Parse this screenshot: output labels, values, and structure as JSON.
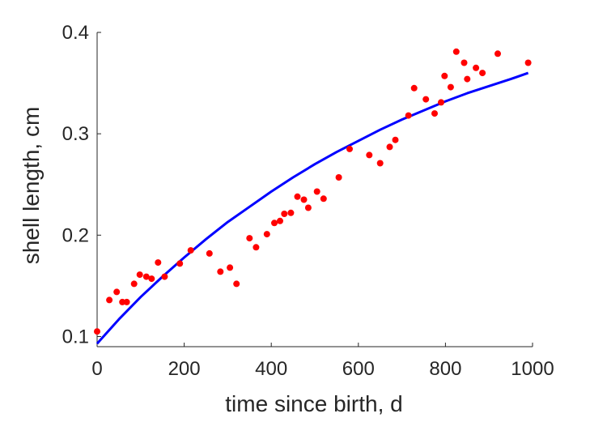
{
  "chart_data": {
    "type": "scatter",
    "title": "",
    "xlabel": "time since birth, d",
    "ylabel": "shell length, cm",
    "xlim": [
      0,
      1000
    ],
    "ylim": [
      0.09,
      0.4
    ],
    "xticks": [
      "0",
      "200",
      "400",
      "600",
      "800",
      "1000"
    ],
    "yticks": [
      "0.1",
      "0.2",
      "0.3",
      "0.4"
    ],
    "xtick_values": [
      0,
      200,
      400,
      600,
      800,
      1000
    ],
    "ytick_values": [
      0.1,
      0.2,
      0.3,
      0.4
    ],
    "grid": false,
    "series": [
      {
        "mode": "markers",
        "color": "#ff0000",
        "x": [
          0,
          28,
          45,
          58,
          68,
          85,
          98,
          113,
          125,
          140,
          155,
          190,
          215,
          258,
          283,
          305,
          320,
          350,
          365,
          390,
          407,
          420,
          430,
          445,
          460,
          475,
          485,
          505,
          520,
          555,
          580,
          625,
          650,
          672,
          685,
          715,
          728,
          755,
          775,
          790,
          798,
          812,
          825,
          843,
          850,
          870,
          885,
          920,
          990
        ],
        "y": [
          0.105,
          0.136,
          0.144,
          0.134,
          0.134,
          0.152,
          0.161,
          0.159,
          0.157,
          0.173,
          0.159,
          0.172,
          0.185,
          0.182,
          0.164,
          0.168,
          0.152,
          0.197,
          0.188,
          0.201,
          0.212,
          0.214,
          0.221,
          0.222,
          0.238,
          0.235,
          0.227,
          0.243,
          0.236,
          0.257,
          0.285,
          0.279,
          0.271,
          0.287,
          0.294,
          0.318,
          0.345,
          0.334,
          0.32,
          0.331,
          0.357,
          0.346,
          0.381,
          0.37,
          0.354,
          0.365,
          0.36,
          0.379,
          0.37
        ]
      },
      {
        "mode": "line",
        "color": "#0000ff",
        "x": [
          0,
          50,
          100,
          150,
          200,
          250,
          300,
          350,
          400,
          450,
          500,
          550,
          600,
          650,
          700,
          750,
          800,
          850,
          900,
          950,
          990
        ],
        "y": [
          0.093,
          0.117,
          0.139,
          0.159,
          0.178,
          0.196,
          0.213,
          0.228,
          0.243,
          0.257,
          0.27,
          0.282,
          0.293,
          0.304,
          0.314,
          0.323,
          0.332,
          0.34,
          0.347,
          0.354,
          0.36
        ]
      }
    ]
  }
}
